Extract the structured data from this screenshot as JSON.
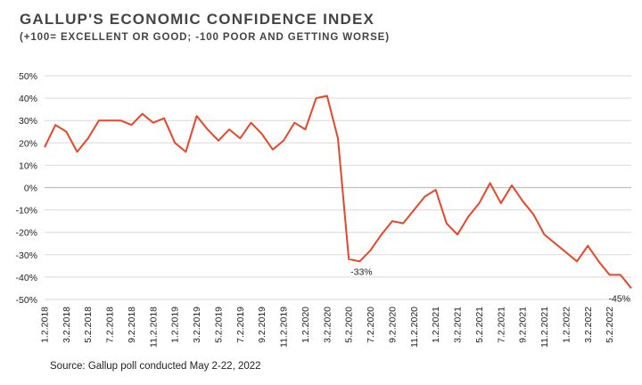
{
  "title": "GALLUP'S ECONOMIC CONFIDENCE INDEX",
  "subtitle": "(+100= EXCELLENT OR GOOD; -100 POOR AND GETTING WORSE)",
  "source": "Source: Gallup poll conducted May 2-22, 2022",
  "colors": {
    "line": "#e8462a",
    "grid": "#d9d9d9",
    "zero": "#bfbfbf"
  },
  "chart_data": {
    "type": "line",
    "title": "GALLUP'S ECONOMIC CONFIDENCE INDEX",
    "subtitle": "(+100= EXCELLENT OR GOOD; -100 POOR AND GETTING WORSE)",
    "xlabel": "",
    "ylabel": "",
    "ylim": [
      -50,
      50
    ],
    "grid": true,
    "y_ticks": [
      "50%",
      "40%",
      "30%",
      "20%",
      "10%",
      "0%",
      "-10%",
      "-20%",
      "-30%",
      "-40%",
      "-50%"
    ],
    "x_ticks": [
      "1.2.2018",
      "3.2.2018",
      "5.2.2018",
      "7.2.2018",
      "9.2.2018",
      "11.2.2018",
      "1.2.2019",
      "3.2.2019",
      "5.2.2019",
      "7.2.2019",
      "9.2.2019",
      "11.2.2019",
      "1.2.2020",
      "3.2.2020",
      "5.2.2020",
      "7.2.2020",
      "9.2.2020",
      "11.2.2020",
      "1.2.2021",
      "3.2.2021",
      "5.2.2021",
      "7.2.2021",
      "9.2.2021",
      "11.2.2021",
      "1.2.2022",
      "3.2.2022",
      "5.2.2022"
    ],
    "series": [
      {
        "values": [
          18,
          28,
          25,
          16,
          22,
          30,
          30,
          30,
          28,
          33,
          29,
          31,
          20,
          16,
          32,
          26,
          21,
          26,
          22,
          29,
          24,
          17,
          21,
          29,
          26,
          40,
          41,
          22,
          -32,
          -33,
          -28,
          -21,
          -15,
          -16,
          -10,
          -4,
          -1,
          -16,
          -21,
          -13,
          -7,
          2,
          -7,
          1,
          -6,
          -12,
          -21,
          -25,
          -29,
          -33,
          -26,
          -33,
          -39,
          -39,
          -45
        ]
      }
    ],
    "annotations": [
      {
        "index": 29,
        "text": "-33%"
      },
      {
        "index": 54,
        "text": "-45%"
      }
    ]
  }
}
